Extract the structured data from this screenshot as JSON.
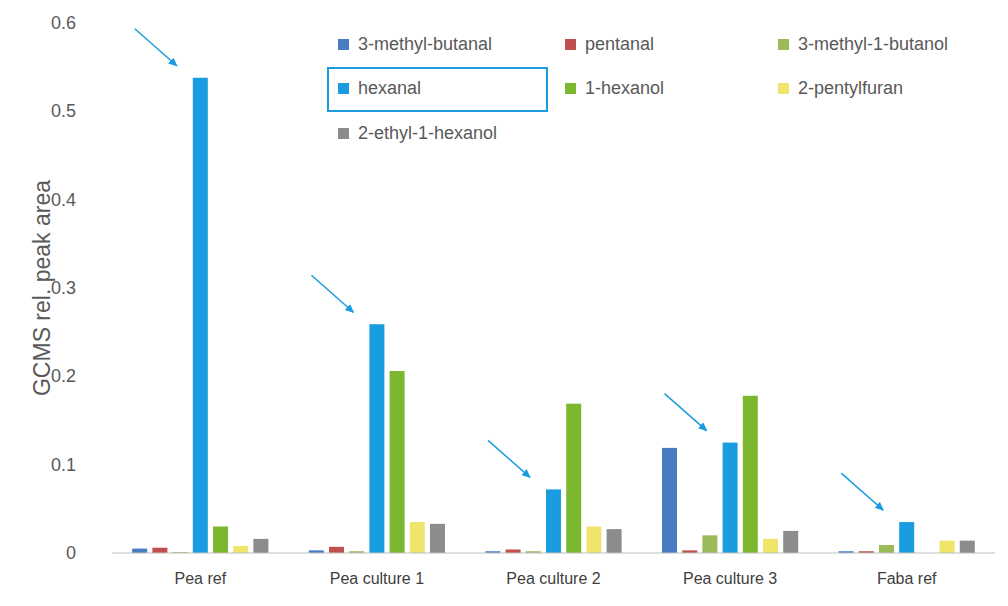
{
  "chart_data": {
    "type": "bar",
    "y_label": "GCMS rel. peak area",
    "categories": [
      "Pea ref",
      "Pea culture 1",
      "Pea culture 2",
      "Pea culture 3",
      "Faba ref"
    ],
    "series": [
      {
        "name": "3-methyl-butanal",
        "color": "#4a7cc4",
        "values": [
          0.005,
          0.003,
          0.002,
          0.119,
          0.002
        ]
      },
      {
        "name": "pentanal",
        "color": "#c0504d",
        "values": [
          0.006,
          0.007,
          0.004,
          0.003,
          0.002
        ]
      },
      {
        "name": "3-methyl-1-butanol",
        "color": "#9bbb59",
        "values": [
          0.001,
          0.002,
          0.002,
          0.02,
          0.009
        ]
      },
      {
        "name": "hexanal",
        "color": "#1a9de0",
        "values": [
          0.538,
          0.259,
          0.072,
          0.125,
          0.035
        ]
      },
      {
        "name": "1-hexanol",
        "color": "#7cb82f",
        "values": [
          0.03,
          0.206,
          0.169,
          0.178,
          0
        ]
      },
      {
        "name": "2-pentylfuran",
        "color": "#efe56b",
        "values": [
          0.008,
          0.035,
          0.03,
          0.016,
          0.014
        ]
      },
      {
        "name": "2-ethyl-1-hexanol",
        "color": "#8c8c8c",
        "values": [
          0.016,
          0.033,
          0.027,
          0.025,
          0.014
        ]
      }
    ],
    "ylim": [
      0,
      0.6
    ],
    "yticks": [
      0,
      0.1,
      0.2,
      0.3,
      0.4,
      0.5,
      0.6
    ],
    "grid": false,
    "legend": "top"
  }
}
